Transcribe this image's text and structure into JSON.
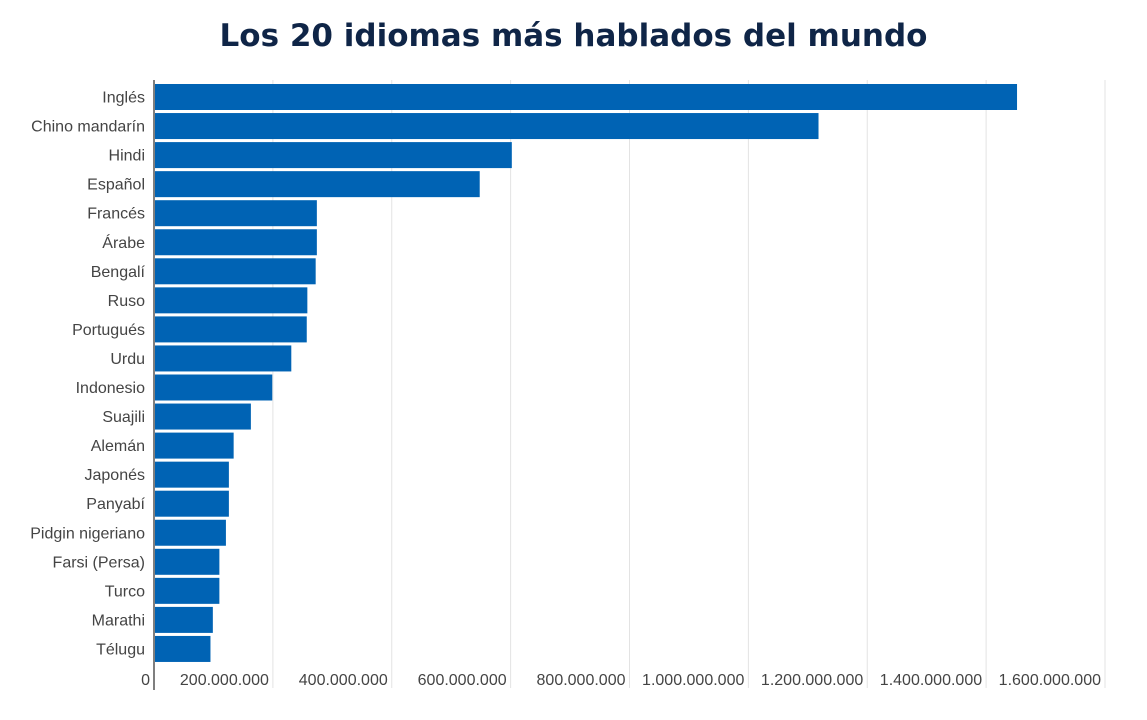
{
  "chart_data": {
    "type": "bar",
    "orientation": "horizontal",
    "title": "Los 20 idiomas más hablados del mundo",
    "categories": [
      "Inglés",
      "Chino mandarín",
      "Hindi",
      "Español",
      "Francés",
      "Árabe",
      "Bengalí",
      "Ruso",
      "Portugués",
      "Urdu",
      "Indonesio",
      "Suajili",
      "Alemán",
      "Japonés",
      "Panyabí",
      "Pidgin nigeriano",
      "Farsi (Persa)",
      "Turco",
      "Marathi",
      "Télugu"
    ],
    "values": [
      1452000000,
      1118000000,
      602000000,
      548000000,
      274000000,
      274000000,
      272000000,
      258000000,
      257000000,
      231000000,
      199000000,
      163000000,
      134000000,
      126000000,
      126000000,
      121000000,
      110000000,
      110000000,
      99000000,
      95000000
    ],
    "xlim": [
      0,
      1600000000
    ],
    "x_ticks": [
      0,
      200000000,
      400000000,
      600000000,
      800000000,
      1000000000,
      1200000000,
      1400000000,
      1600000000
    ],
    "x_tick_labels": [
      "0",
      "200.000.000",
      "400.000.000",
      "600.000.000",
      "800.000.000",
      "1.000.000.000",
      "1.200.000.000",
      "1.400.000.000",
      "1.600.000.000"
    ],
    "xlabel": "",
    "ylabel": "",
    "grid": "vertical",
    "bar_color": "#0063b4"
  }
}
